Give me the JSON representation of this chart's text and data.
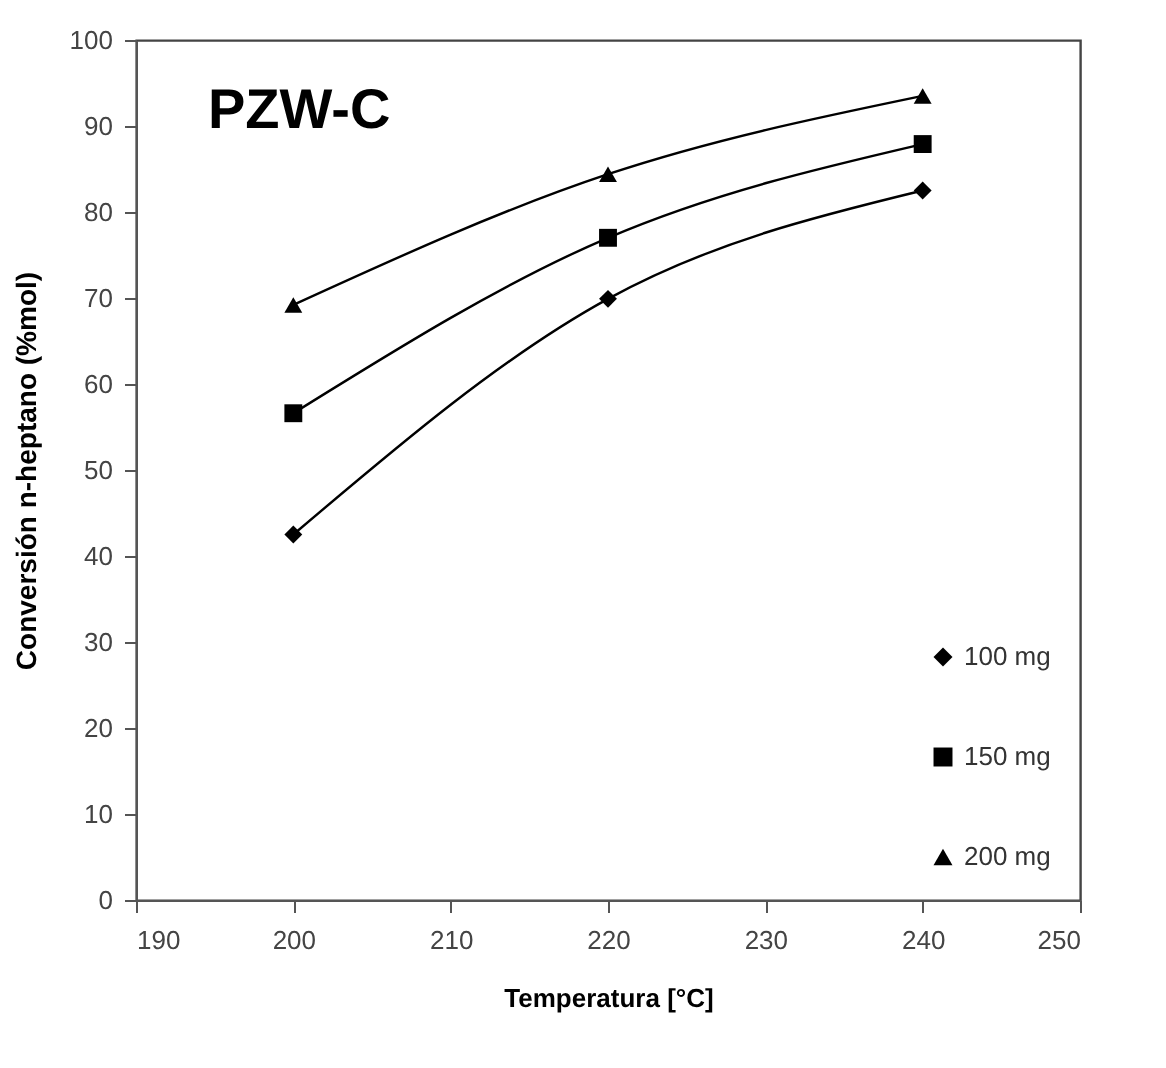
{
  "chart_data": {
    "type": "line",
    "xlabel": "Temperatura [°C]",
    "ylabel": "Conversión n-heptano  (%mol)",
    "annotations": [
      "PZW-C"
    ],
    "x": [
      200,
      220,
      240
    ],
    "series": [
      {
        "name": "100 mg",
        "color": "#000000",
        "marker": "diamond",
        "values": [
          42.5,
          69.9,
          82.5
        ]
      },
      {
        "name": "150 mg",
        "color": "#000000",
        "marker": "square",
        "values": [
          56.6,
          77.0,
          87.9
        ]
      },
      {
        "name": "200 mg",
        "color": "#000000",
        "marker": "triangle",
        "values": [
          69.2,
          84.4,
          93.5
        ]
      }
    ],
    "xlim": [
      190,
      250
    ],
    "xticks": [
      190,
      200,
      210,
      220,
      230,
      240,
      250
    ],
    "ylim": [
      0,
      100
    ],
    "yticks": [
      0,
      10,
      20,
      30,
      40,
      50,
      60,
      70,
      80,
      90,
      100
    ],
    "grid": false,
    "legend": "right",
    "line_style": "solid"
  }
}
